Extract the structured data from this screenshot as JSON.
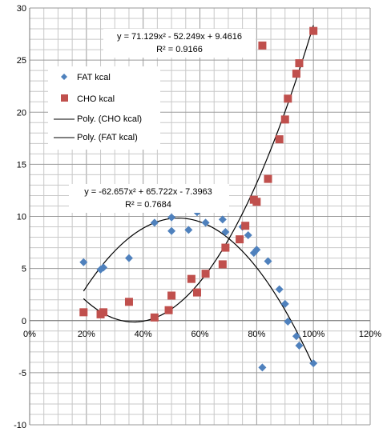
{
  "chart_data": {
    "type": "scatter",
    "xlim": [
      0,
      1.2
    ],
    "ylim": [
      -10,
      30
    ],
    "x_ticks": [
      {
        "v": 0,
        "label": "0%"
      },
      {
        "v": 0.2,
        "label": "20%"
      },
      {
        "v": 0.4,
        "label": "40%"
      },
      {
        "v": 0.6,
        "label": "60%"
      },
      {
        "v": 0.8,
        "label": "80%"
      },
      {
        "v": 1.0,
        "label": "100%"
      },
      {
        "v": 1.2,
        "label": "120%"
      }
    ],
    "y_ticks": [
      {
        "v": -10,
        "label": "-10"
      },
      {
        "v": -5,
        "label": "-5"
      },
      {
        "v": 0,
        "label": "0"
      },
      {
        "v": 5,
        "label": "5"
      },
      {
        "v": 10,
        "label": "10"
      },
      {
        "v": 15,
        "label": "15"
      },
      {
        "v": 20,
        "label": "20"
      },
      {
        "v": 25,
        "label": "25"
      },
      {
        "v": 30,
        "label": "30"
      }
    ],
    "grid": true,
    "legend_position": "left-middle",
    "series": [
      {
        "name": "FAT kcal",
        "marker": "diamond",
        "color": "#4F81BD",
        "points": [
          [
            0.19,
            5.6
          ],
          [
            0.25,
            4.9
          ],
          [
            0.26,
            5.1
          ],
          [
            0.35,
            6.0
          ],
          [
            0.44,
            9.4
          ],
          [
            0.5,
            9.9
          ],
          [
            0.5,
            8.6
          ],
          [
            0.56,
            8.7
          ],
          [
            0.59,
            10.4
          ],
          [
            0.62,
            9.4
          ],
          [
            0.68,
            9.7
          ],
          [
            0.69,
            8.5
          ],
          [
            0.75,
            9.0
          ],
          [
            0.77,
            8.2
          ],
          [
            0.79,
            6.5
          ],
          [
            0.8,
            6.8
          ],
          [
            0.82,
            -4.5
          ],
          [
            0.84,
            5.7
          ],
          [
            0.88,
            3.0
          ],
          [
            0.9,
            1.6
          ],
          [
            0.91,
            -0.1
          ],
          [
            0.94,
            -1.5
          ],
          [
            0.95,
            -2.4
          ],
          [
            1.0,
            -4.1
          ]
        ]
      },
      {
        "name": "CHO kcal",
        "marker": "square",
        "color": "#C0504D",
        "points": [
          [
            0.19,
            0.8
          ],
          [
            0.25,
            0.6
          ],
          [
            0.26,
            0.8
          ],
          [
            0.35,
            1.8
          ],
          [
            0.44,
            0.3
          ],
          [
            0.49,
            1.0
          ],
          [
            0.5,
            2.4
          ],
          [
            0.57,
            4.0
          ],
          [
            0.59,
            2.7
          ],
          [
            0.62,
            4.5
          ],
          [
            0.68,
            5.4
          ],
          [
            0.69,
            7.0
          ],
          [
            0.74,
            7.8
          ],
          [
            0.76,
            9.1
          ],
          [
            0.79,
            11.6
          ],
          [
            0.8,
            11.4
          ],
          [
            0.82,
            26.4
          ],
          [
            0.84,
            13.6
          ],
          [
            0.88,
            17.4
          ],
          [
            0.9,
            19.3
          ],
          [
            0.91,
            21.3
          ],
          [
            0.94,
            23.7
          ],
          [
            0.95,
            24.7
          ],
          [
            1.0,
            27.8
          ]
        ]
      }
    ],
    "trendlines": [
      {
        "name": "Poly. (CHO kcal)",
        "coefficients": [
          71.129,
          -52.249,
          9.4616
        ],
        "x_range": [
          0.19,
          1.0
        ],
        "equation_label": "y = 71.129x² - 52.249x + 9.4616",
        "r2_label": "R² = 0.9166"
      },
      {
        "name": "Poly. (FAT kcal)",
        "coefficients": [
          -62.657,
          65.722,
          -7.3963
        ],
        "x_range": [
          0.19,
          1.0
        ],
        "equation_label": "y = -62.657x² + 65.722x - 7.3963",
        "r2_label": "R² = 0.7684"
      }
    ]
  }
}
